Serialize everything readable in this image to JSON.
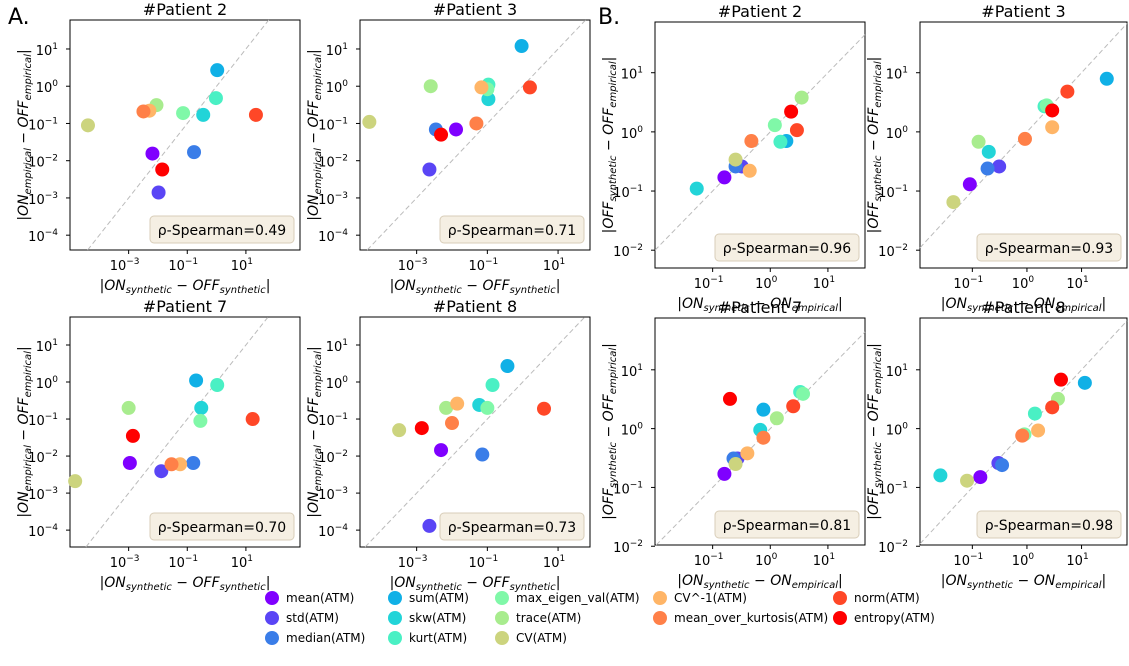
{
  "panel_labels": [
    "A.",
    "B."
  ],
  "legend": {
    "entries": [
      {
        "name": "mean(ATM)",
        "color": "#7f00ff"
      },
      {
        "name": "std(ATM)",
        "color": "#5a45f5"
      },
      {
        "name": "median(ATM)",
        "color": "#3a7de8"
      },
      {
        "name": "sum(ATM)",
        "color": "#10b0e6"
      },
      {
        "name": "skw(ATM)",
        "color": "#22d4d8"
      },
      {
        "name": "kurt(ATM)",
        "color": "#4af0c4"
      },
      {
        "name": "max_eigen_val(ATM)",
        "color": "#80f8a8"
      },
      {
        "name": "trace(ATM)",
        "color": "#a8ec8e"
      },
      {
        "name": "CV(ATM)",
        "color": "#ccd47e"
      },
      {
        "name": "CV^-1(ATM)",
        "color": "#ffb567"
      },
      {
        "name": "mean_over_kurtosis(ATM)",
        "color": "#ff8048"
      },
      {
        "name": "norm(ATM)",
        "color": "#ff4727"
      },
      {
        "name": "entropy(ATM)",
        "color": "#ff0000"
      }
    ]
  },
  "chart_data": [
    {
      "type": "scatter",
      "title": "#Patient 2",
      "xlabel": [
        "|ON",
        "synthetic",
        " − OFF",
        "synthetic",
        "|"
      ],
      "ylabel": [
        "|ON",
        "empirical",
        " − OFF",
        "empirical",
        "|"
      ],
      "annotation": "ρ-Spearman=0.49",
      "xscale": "log",
      "yscale": "log",
      "xlim": [
        1e-05,
        700
      ],
      "ylim": [
        4e-05,
        60
      ],
      "xticks": [
        {
          "value": 0.001,
          "label": [
            "10",
            "−3"
          ]
        },
        {
          "value": 0.1,
          "label": [
            "10",
            "−1"
          ]
        },
        {
          "value": 10,
          "label": [
            "10",
            "1"
          ]
        }
      ],
      "yticks": [
        {
          "value": 0.0001,
          "label": [
            "10",
            "−4"
          ]
        },
        {
          "value": 0.001,
          "label": [
            "10",
            "−3"
          ]
        },
        {
          "value": 0.01,
          "label": [
            "10",
            "−2"
          ]
        },
        {
          "value": 0.1,
          "label": [
            "10",
            "−1"
          ]
        },
        {
          "value": 1,
          "label": [
            "10",
            "0"
          ]
        },
        {
          "value": 10,
          "label": [
            "10",
            "1"
          ]
        }
      ],
      "x": [
        0.0065,
        0.0105,
        0.17,
        1.05,
        0.35,
        0.95,
        0.072,
        0.0089,
        4.1e-05,
        0.0051,
        0.0032,
        22,
        0.014
      ],
      "y": [
        0.0155,
        0.0014,
        0.017,
        2.7,
        0.17,
        0.48,
        0.19,
        0.31,
        0.089,
        0.22,
        0.21,
        0.17,
        0.0058
      ]
    },
    {
      "type": "scatter",
      "title": "#Patient 3",
      "xlabel": [
        "|ON",
        "synthetic",
        " − OFF",
        "synthetic",
        "|"
      ],
      "ylabel": [
        "|ON",
        "empirical",
        " − OFF",
        "empirical",
        "|"
      ],
      "annotation": "ρ-Spearman=0.71",
      "xscale": "log",
      "yscale": "log",
      "xlim": [
        2.5e-05,
        80
      ],
      "ylim": [
        4e-05,
        60
      ],
      "xticks": [
        {
          "value": 0.001,
          "label": [
            "10",
            "−3"
          ]
        },
        {
          "value": 0.1,
          "label": [
            "10",
            "−1"
          ]
        },
        {
          "value": 10,
          "label": [
            "10",
            "1"
          ]
        }
      ],
      "yticks": [
        {
          "value": 0.0001,
          "label": [
            "10",
            "−4"
          ]
        },
        {
          "value": 0.001,
          "label": [
            "10",
            "−3"
          ]
        },
        {
          "value": 0.01,
          "label": [
            "10",
            "−2"
          ]
        },
        {
          "value": 0.1,
          "label": [
            "10",
            "−1"
          ]
        },
        {
          "value": 1,
          "label": [
            "10",
            "0"
          ]
        },
        {
          "value": 10,
          "label": [
            "10",
            "1"
          ]
        }
      ],
      "x": [
        0.013,
        0.0023,
        0.0035,
        0.93,
        0.107,
        0.107,
        0.1,
        0.0025,
        4.6e-05,
        0.068,
        0.049,
        1.6,
        0.0049
      ],
      "y": [
        0.069,
        0.0058,
        0.069,
        12,
        0.45,
        1.1,
        0.83,
        1.0,
        0.11,
        0.93,
        0.1,
        0.93,
        0.05
      ]
    },
    {
      "type": "scatter",
      "title": "#Patient 2",
      "xlabel": [
        "|ON",
        "synthetic",
        " − ON",
        "empirical",
        "|"
      ],
      "ylabel": [
        "|OFF",
        "synthetic",
        " − OFF",
        "empirical",
        "|"
      ],
      "annotation": "ρ-Spearman=0.96",
      "xscale": "log",
      "yscale": "log",
      "xlim": [
        0.01,
        44
      ],
      "ylim": [
        0.005,
        72
      ],
      "xticks": [
        {
          "value": 0.1,
          "label": [
            "10",
            "−1"
          ]
        },
        {
          "value": 1,
          "label": [
            "10",
            "0"
          ]
        },
        {
          "value": 10,
          "label": [
            "10",
            "1"
          ]
        }
      ],
      "yticks": [
        {
          "value": 0.01,
          "label": [
            "10",
            "−2"
          ]
        },
        {
          "value": 0.1,
          "label": [
            "10",
            "−1"
          ]
        },
        {
          "value": 1,
          "label": [
            "10",
            "0"
          ]
        },
        {
          "value": 10,
          "label": [
            "10",
            "1"
          ]
        }
      ],
      "x": [
        0.16,
        0.32,
        0.25,
        1.9,
        0.053,
        1.5,
        1.2,
        3.5,
        0.25,
        0.44,
        0.47,
        2.9,
        2.3
      ],
      "y": [
        0.17,
        0.26,
        0.26,
        0.7,
        0.11,
        0.68,
        1.3,
        3.8,
        0.34,
        0.22,
        0.7,
        1.07,
        2.2
      ]
    },
    {
      "type": "scatter",
      "title": "#Patient 3",
      "xlabel": [
        "|ON",
        "synthetic",
        " − ON",
        "empirical",
        "|"
      ],
      "ylabel": [
        "|OFF",
        "synthetic",
        " − OFF",
        "empirical",
        "|"
      ],
      "annotation": "ρ-Spearman=0.93",
      "xscale": "log",
      "yscale": "log",
      "xlim": [
        0.011,
        68
      ],
      "ylim": [
        0.005,
        72
      ],
      "xticks": [
        {
          "value": 0.1,
          "label": [
            "10",
            "−1"
          ]
        },
        {
          "value": 1,
          "label": [
            "10",
            "0"
          ]
        },
        {
          "value": 10,
          "label": [
            "10",
            "1"
          ]
        }
      ],
      "yticks": [
        {
          "value": 0.01,
          "label": [
            "10",
            "−2"
          ]
        },
        {
          "value": 0.1,
          "label": [
            "10",
            "−1"
          ]
        },
        {
          "value": 1,
          "label": [
            "10",
            "0"
          ]
        },
        {
          "value": 10,
          "label": [
            "10",
            "1"
          ]
        }
      ],
      "x": [
        0.09,
        0.31,
        0.19,
        29,
        0.2,
        2.1,
        2.3,
        0.13,
        0.045,
        2.9,
        0.92,
        5.5,
        2.9
      ],
      "y": [
        0.13,
        0.26,
        0.24,
        7.9,
        0.46,
        2.7,
        2.8,
        0.68,
        0.065,
        1.2,
        0.76,
        4.8,
        2.3
      ]
    },
    {
      "type": "scatter",
      "title": "#Patient 7",
      "xlabel": [
        "|ON",
        "synthetic",
        " − OFF",
        "synthetic",
        "|"
      ],
      "ylabel": [
        "|ON",
        "empirical",
        " − OFF",
        "empirical",
        "|"
      ],
      "annotation": "ρ-Spearman=0.70",
      "xscale": "log",
      "yscale": "log",
      "xlim": [
        1e-05,
        700
      ],
      "ylim": [
        3.5e-05,
        57
      ],
      "xticks": [
        {
          "value": 0.001,
          "label": [
            "10",
            "−3"
          ]
        },
        {
          "value": 0.1,
          "label": [
            "10",
            "−1"
          ]
        },
        {
          "value": 10,
          "label": [
            "10",
            "1"
          ]
        }
      ],
      "yticks": [
        {
          "value": 0.0001,
          "label": [
            "10",
            "−4"
          ]
        },
        {
          "value": 0.001,
          "label": [
            "10",
            "−3"
          ]
        },
        {
          "value": 0.01,
          "label": [
            "10",
            "−2"
          ]
        },
        {
          "value": 0.1,
          "label": [
            "10",
            "−1"
          ]
        },
        {
          "value": 1,
          "label": [
            "10",
            "0"
          ]
        },
        {
          "value": 10,
          "label": [
            "10",
            "1"
          ]
        }
      ],
      "x": [
        0.0011,
        0.013,
        0.16,
        0.2,
        0.3,
        1.05,
        0.28,
        0.001,
        1.5e-05,
        0.057,
        0.029,
        17,
        0.0014
      ],
      "y": [
        0.0065,
        0.0039,
        0.0065,
        1.1,
        0.2,
        0.83,
        0.089,
        0.2,
        0.0021,
        0.006,
        0.006,
        0.1,
        0.035
      ]
    },
    {
      "type": "scatter",
      "title": "#Patient 8",
      "xlabel": [
        "|ON",
        "synthetic",
        " − OFF",
        "synthetic",
        "|"
      ],
      "ylabel": [
        "|ON",
        "empirical",
        " − OFF",
        "empirical",
        "|"
      ],
      "annotation": "ρ-Spearman=0.73",
      "xscale": "log",
      "yscale": "log",
      "xlim": [
        2.5e-05,
        80
      ],
      "ylim": [
        3.5e-05,
        57
      ],
      "xticks": [
        {
          "value": 0.001,
          "label": [
            "10",
            "−3"
          ]
        },
        {
          "value": 0.1,
          "label": [
            "10",
            "−1"
          ]
        },
        {
          "value": 10,
          "label": [
            "10",
            "1"
          ]
        }
      ],
      "yticks": [
        {
          "value": 0.0001,
          "label": [
            "10",
            "−4"
          ]
        },
        {
          "value": 0.001,
          "label": [
            "10",
            "−3"
          ]
        },
        {
          "value": 0.01,
          "label": [
            "10",
            "−2"
          ]
        },
        {
          "value": 0.1,
          "label": [
            "10",
            "−1"
          ]
        },
        {
          "value": 1,
          "label": [
            "10",
            "0"
          ]
        },
        {
          "value": 10,
          "label": [
            "10",
            "1"
          ]
        }
      ],
      "x": [
        0.0049,
        0.0023,
        0.072,
        0.37,
        0.059,
        0.14,
        0.1,
        0.0068,
        0.00032,
        0.014,
        0.01,
        4.0,
        0.0014
      ],
      "y": [
        0.0145,
        0.00013,
        0.011,
        2.7,
        0.24,
        0.83,
        0.2,
        0.2,
        0.05,
        0.26,
        0.078,
        0.19,
        0.057
      ]
    },
    {
      "type": "scatter",
      "title": "#Patient 7",
      "xlabel": [
        "|ON",
        "synthetic",
        " − ON",
        "empirical",
        "|"
      ],
      "ylabel": [
        "|OFF",
        "synthetic",
        " − OFF",
        "empirical",
        "|"
      ],
      "annotation": "ρ-Spearman=0.81",
      "xscale": "log",
      "yscale": "log",
      "xlim": [
        0.01,
        44
      ],
      "ylim": [
        0.0105,
        76
      ],
      "xticks": [
        {
          "value": 0.1,
          "label": [
            "10",
            "−1"
          ]
        },
        {
          "value": 1,
          "label": [
            "10",
            "0"
          ]
        },
        {
          "value": 10,
          "label": [
            "10",
            "1"
          ]
        }
      ],
      "yticks": [
        {
          "value": 0.01,
          "label": [
            "10",
            "−2"
          ]
        },
        {
          "value": 0.1,
          "label": [
            "10",
            "−1"
          ]
        },
        {
          "value": 1,
          "label": [
            "10",
            "0"
          ]
        },
        {
          "value": 10,
          "label": [
            "10",
            "1"
          ]
        }
      ],
      "x": [
        0.16,
        0.27,
        0.23,
        0.76,
        0.67,
        3.3,
        3.7,
        1.3,
        0.25,
        0.4,
        0.76,
        2.5,
        0.2
      ],
      "y": [
        0.17,
        0.31,
        0.31,
        2.1,
        0.95,
        4.2,
        3.9,
        1.5,
        0.25,
        0.38,
        0.7,
        2.4,
        3.2
      ]
    },
    {
      "type": "scatter",
      "title": "#Patient 8",
      "xlabel": [
        "|ON",
        "synthetic",
        " − ON",
        "empirical",
        "|"
      ],
      "ylabel": [
        "|OFF",
        "synthetic",
        " − OFF",
        "empirical",
        "|"
      ],
      "annotation": "ρ-Spearman=0.98",
      "xscale": "log",
      "yscale": "log",
      "xlim": [
        0.011,
        68
      ],
      "ylim": [
        0.0105,
        76
      ],
      "xticks": [
        {
          "value": 0.1,
          "label": [
            "10",
            "−1"
          ]
        },
        {
          "value": 1,
          "label": [
            "10",
            "0"
          ]
        },
        {
          "value": 10,
          "label": [
            "10",
            "1"
          ]
        }
      ],
      "yticks": [
        {
          "value": 0.01,
          "label": [
            "10",
            "−2"
          ]
        },
        {
          "value": 0.1,
          "label": [
            "10",
            "−1"
          ]
        },
        {
          "value": 1,
          "label": [
            "10",
            "0"
          ]
        },
        {
          "value": 10,
          "label": [
            "10",
            "1"
          ]
        }
      ],
      "x": [
        0.14,
        0.3,
        0.35,
        11.5,
        0.026,
        1.4,
        0.9,
        3.7,
        0.08,
        1.6,
        0.82,
        2.9,
        4.2
      ],
      "y": [
        0.15,
        0.26,
        0.24,
        6,
        0.16,
        1.8,
        0.8,
        3.2,
        0.13,
        0.93,
        0.76,
        2.3,
        6.8
      ]
    }
  ]
}
